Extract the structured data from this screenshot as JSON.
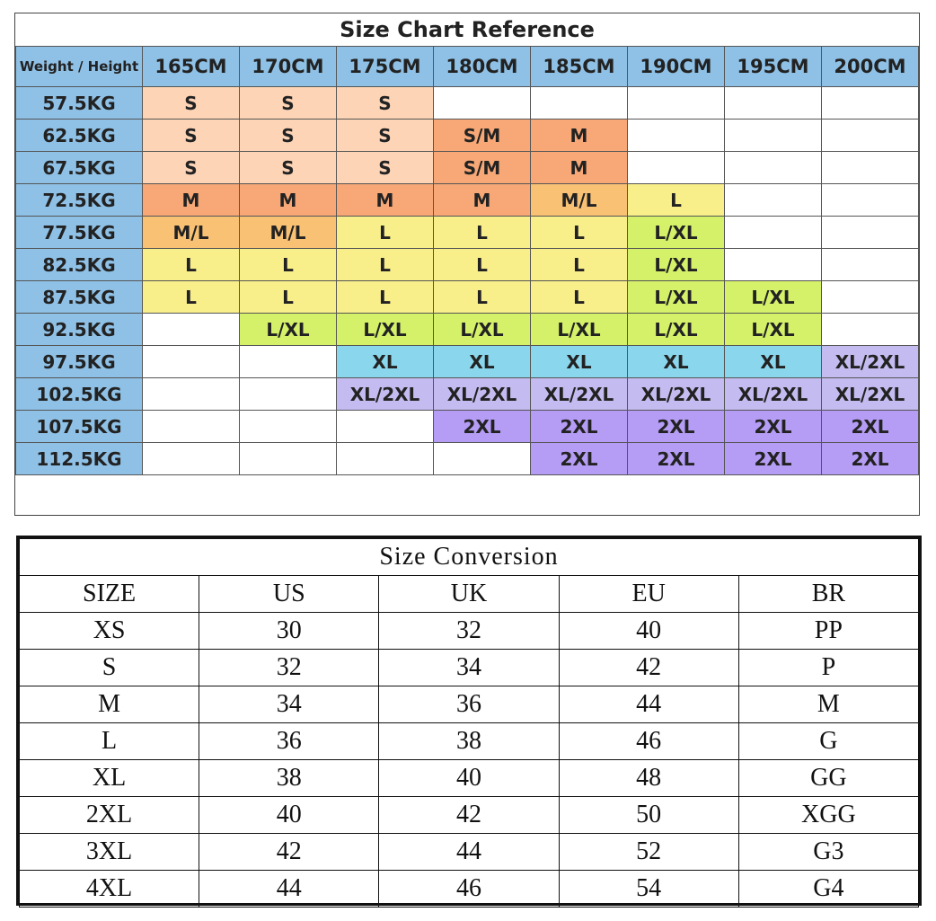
{
  "size_chart": {
    "title": "Size Chart Reference",
    "corner_label": "Weight / Height",
    "heights": [
      "165CM",
      "170CM",
      "175CM",
      "180CM",
      "185CM",
      "190CM",
      "195CM",
      "200CM"
    ],
    "colors": {
      "S": "#fdd4b6",
      "S/M": "#f7a876",
      "M": "#f7a876",
      "M/L": "#f9c174",
      "L": "#f8ee8a",
      "L/XL": "#d5f16a",
      "XL": "#8ad6ec",
      "XL/2XL": "#c4bcf0",
      "2XL": "#b59cf5",
      "header": "#8fc1e6"
    },
    "rows": [
      {
        "weight": "57.5KG",
        "sizes": [
          "S",
          "S",
          "S",
          "",
          "",
          "",
          "",
          ""
        ]
      },
      {
        "weight": "62.5KG",
        "sizes": [
          "S",
          "S",
          "S",
          "S/M",
          "M",
          "",
          "",
          ""
        ]
      },
      {
        "weight": "67.5KG",
        "sizes": [
          "S",
          "S",
          "S",
          "S/M",
          "M",
          "",
          "",
          ""
        ]
      },
      {
        "weight": "72.5KG",
        "sizes": [
          "M",
          "M",
          "M",
          "M",
          "M/L",
          "L",
          "",
          ""
        ]
      },
      {
        "weight": "77.5KG",
        "sizes": [
          "M/L",
          "M/L",
          "L",
          "L",
          "L",
          "L/XL",
          "",
          ""
        ]
      },
      {
        "weight": "82.5KG",
        "sizes": [
          "L",
          "L",
          "L",
          "L",
          "L",
          "L/XL",
          "",
          ""
        ]
      },
      {
        "weight": "87.5KG",
        "sizes": [
          "L",
          "L",
          "L",
          "L",
          "L",
          "L/XL",
          "L/XL",
          ""
        ]
      },
      {
        "weight": "92.5KG",
        "sizes": [
          "",
          "L/XL",
          "L/XL",
          "L/XL",
          "L/XL",
          "L/XL",
          "L/XL",
          ""
        ]
      },
      {
        "weight": "97.5KG",
        "sizes": [
          "",
          "",
          "XL",
          "XL",
          "XL",
          "XL",
          "XL",
          "XL/2XL"
        ]
      },
      {
        "weight": "102.5KG",
        "sizes": [
          "",
          "",
          "XL/2XL",
          "XL/2XL",
          "XL/2XL",
          "XL/2XL",
          "XL/2XL",
          "XL/2XL"
        ]
      },
      {
        "weight": "107.5KG",
        "sizes": [
          "",
          "",
          "",
          "2XL",
          "2XL",
          "2XL",
          "2XL",
          "2XL"
        ]
      },
      {
        "weight": "112.5KG",
        "sizes": [
          "",
          "",
          "",
          "",
          "2XL",
          "2XL",
          "2XL",
          "2XL"
        ]
      }
    ]
  },
  "size_conversion": {
    "title": "Size Conversion",
    "headers": [
      "SIZE",
      "US",
      "UK",
      "EU",
      "BR"
    ],
    "rows": [
      [
        "XS",
        "30",
        "32",
        "40",
        "PP"
      ],
      [
        "S",
        "32",
        "34",
        "42",
        "P"
      ],
      [
        "M",
        "34",
        "36",
        "44",
        "M"
      ],
      [
        "L",
        "36",
        "38",
        "46",
        "G"
      ],
      [
        "XL",
        "38",
        "40",
        "48",
        "GG"
      ],
      [
        "2XL",
        "40",
        "42",
        "50",
        "XGG"
      ],
      [
        "3XL",
        "42",
        "44",
        "52",
        "G3"
      ],
      [
        "4XL",
        "44",
        "46",
        "54",
        "G4"
      ]
    ]
  }
}
